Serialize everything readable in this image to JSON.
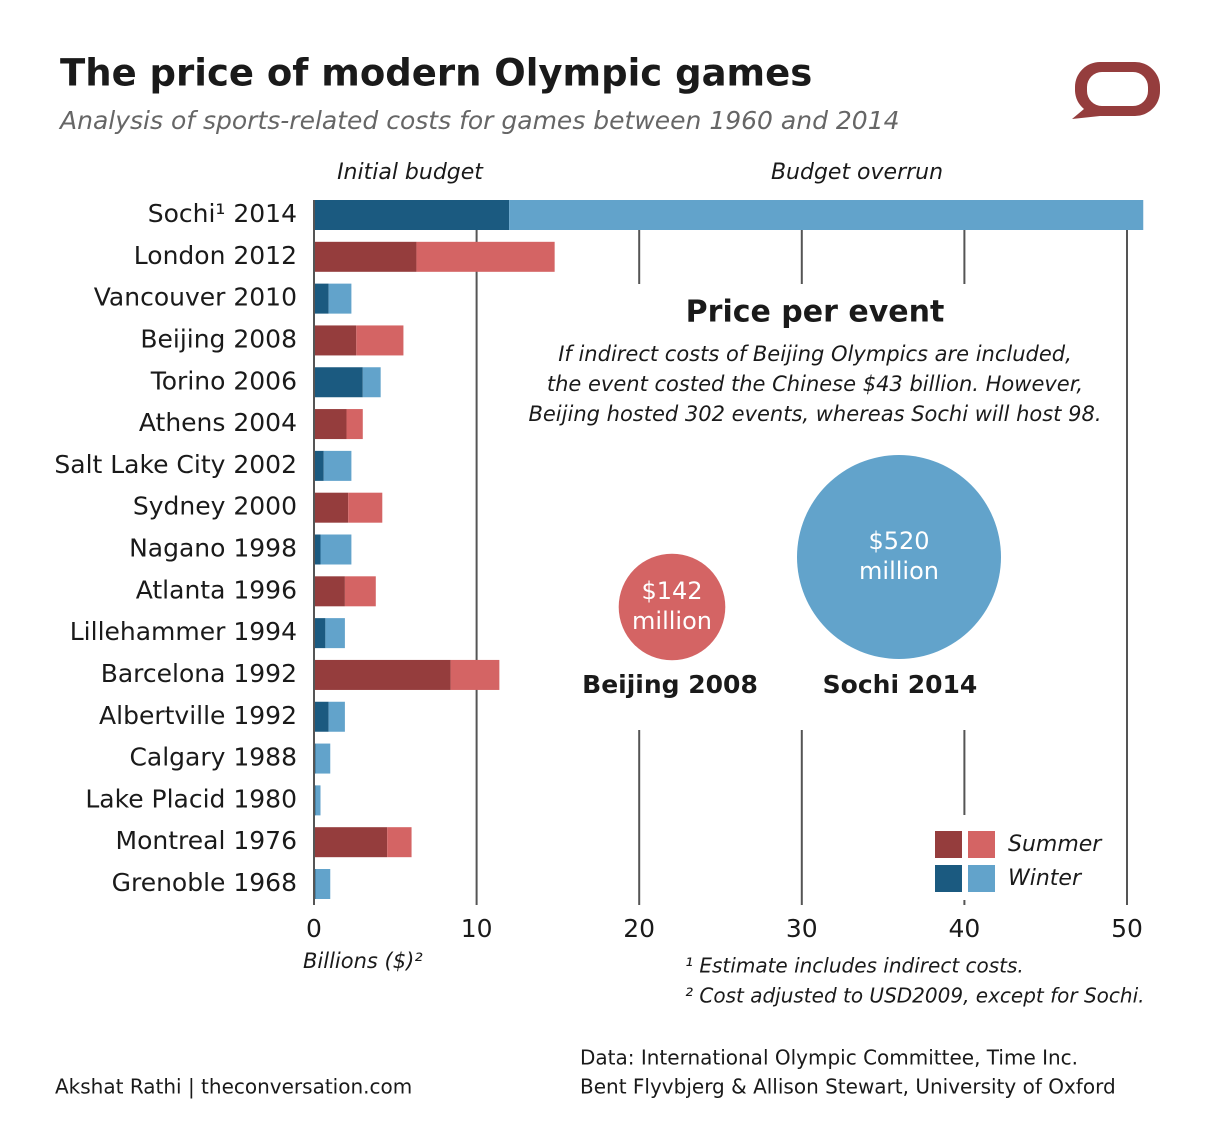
{
  "chart_data": {
    "type": "bar",
    "orientation": "horizontal",
    "stacked": true,
    "title": "The price of modern Olympic games",
    "subtitle": "Analysis of sports-related costs for games between 1960 and 2014",
    "categories": [
      "Sochi¹ 2014",
      "London 2012",
      "Vancouver 2010",
      "Beijing 2008",
      "Torino 2006",
      "Athens 2004",
      "Salt Lake City 2002",
      "Sydney 2000",
      "Nagano 1998",
      "Atlanta 1996",
      "Lillehammer 1994",
      "Barcelona 1992",
      "Albertville 1992",
      "Calgary 1988",
      "Lake Placid 1980",
      "Montreal 1976",
      "Grenoble 1968"
    ],
    "seasons": [
      "Winter",
      "Summer",
      "Winter",
      "Summer",
      "Winter",
      "Summer",
      "Winter",
      "Summer",
      "Winter",
      "Summer",
      "Winter",
      "Summer",
      "Winter",
      "Winter",
      "Winter",
      "Summer",
      "Winter"
    ],
    "series": [
      {
        "name": "Initial budget",
        "values": [
          12,
          6.3,
          0.9,
          2.6,
          3.0,
          2.0,
          0.6,
          2.1,
          0.4,
          1.9,
          0.7,
          8.4,
          0.9,
          0.1,
          0.1,
          4.5,
          0.1
        ]
      },
      {
        "name": "Budget overrun",
        "values": [
          39,
          8.5,
          1.4,
          2.9,
          1.1,
          1.0,
          1.7,
          2.1,
          1.9,
          1.9,
          1.2,
          3.0,
          1.0,
          0.9,
          0.3,
          1.5,
          0.9
        ]
      }
    ],
    "legend": [
      {
        "name": "Summer",
        "colors": [
          "#953d3d",
          "#d46464"
        ]
      },
      {
        "name": "Winter",
        "colors": [
          "#1b5a80",
          "#62a3cb"
        ]
      }
    ],
    "xlim": [
      0,
      52
    ],
    "xticks": [
      0,
      10,
      20,
      30,
      40,
      50
    ],
    "xlabel": "Billions ($)²",
    "grid": true,
    "inset": {
      "title": "Price per event",
      "text": [
        "If indirect costs of Beijing Olympics are included,",
        "the event costed the Chinese $43 billion. However,",
        "Beijing hosted 302 events, whereas Sochi will host 98."
      ],
      "items": [
        {
          "name": "Beijing 2008",
          "value": 142,
          "value_label": "$142 million",
          "color": "#d46464"
        },
        {
          "name": "Sochi 2014",
          "value": 520,
          "value_label": "$520 million",
          "color": "#62a3cb"
        }
      ]
    },
    "footnotes": [
      "¹ Estimate includes indirect costs.",
      "² Cost adjusted to USD2009, except for Sochi."
    ],
    "source": [
      "Data: International Olympic Committee, Time Inc.",
      "Bent Flyvbjerg & Allison Stewart, University of Oxford"
    ],
    "credit": "Akshat Rathi | theconversation.com"
  }
}
